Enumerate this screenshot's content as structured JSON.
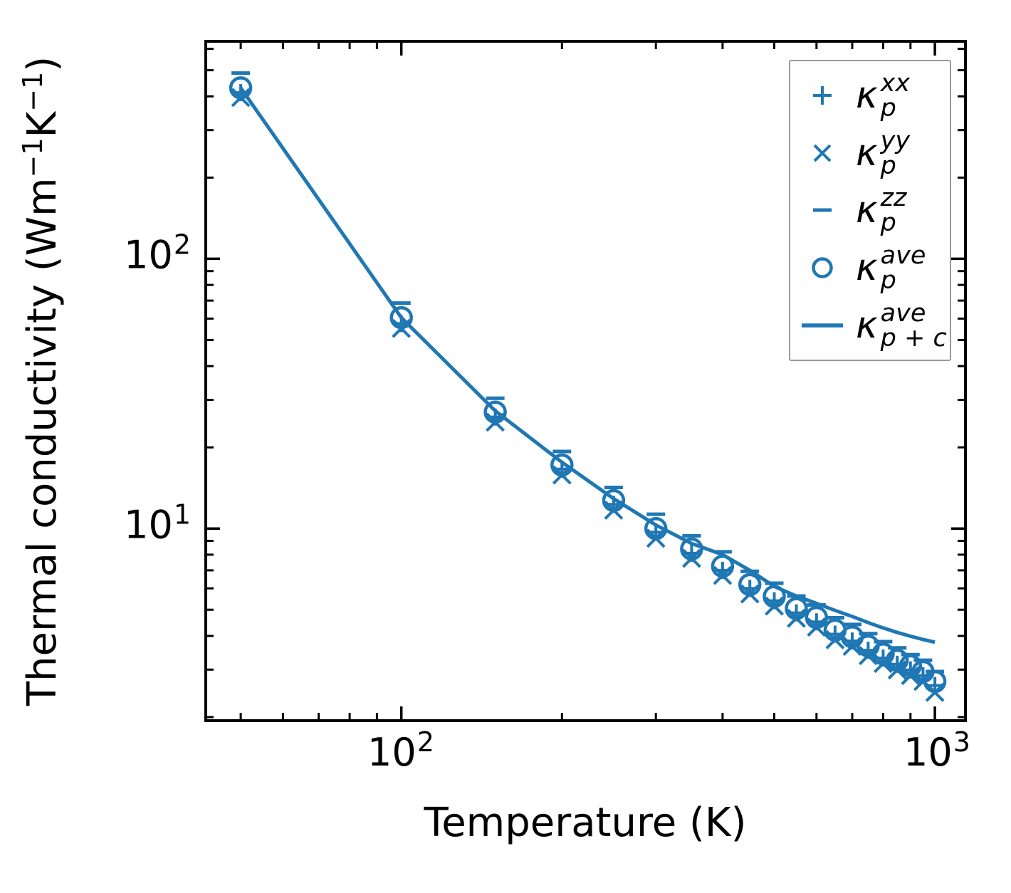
{
  "figure": {
    "x_axis": {
      "label": "Temperature (K)",
      "tick_labels": [
        {
          "base": "10",
          "exp": "2"
        },
        {
          "base": "10",
          "exp": "3"
        }
      ]
    },
    "y_axis": {
      "label_parts": {
        "p1": "Thermal conductivity (Wm",
        "exp1": "−1",
        "p2": "K",
        "exp2": "−1",
        "p3": ")"
      },
      "tick_labels": [
        {
          "base": "10",
          "exp": "2"
        },
        {
          "base": "10",
          "exp": "1"
        }
      ]
    },
    "legend": {
      "items": [
        {
          "marker": "plus-marker-icon",
          "symbol": "κ",
          "sup": "xx",
          "sub": "p"
        },
        {
          "marker": "cross-marker-icon",
          "symbol": "κ",
          "sup": "yy",
          "sub": "p"
        },
        {
          "marker": "dash-marker-icon",
          "symbol": "κ",
          "sup": "zz",
          "sub": "p"
        },
        {
          "marker": "circle-marker-icon",
          "symbol": "κ",
          "sup": "ave",
          "sub": "p"
        },
        {
          "marker": "line-sample-icon",
          "symbol": "κ",
          "sup": "ave",
          "sub": "p + c"
        }
      ]
    },
    "colors": {
      "series": "#1f77b4",
      "axis": "#000000",
      "legend_border": "#9a9a9a",
      "background": "#ffffff"
    }
  },
  "chart_data": {
    "type": "scatter",
    "xscale": "log",
    "yscale": "log",
    "grid": false,
    "legend_position": "upper right",
    "xlabel": "Temperature (K)",
    "ylabel": "Thermal conductivity (Wm⁻¹K⁻¹)",
    "xlim": [
      43,
      1141
    ],
    "ylim": [
      1.94,
      640
    ],
    "x": [
      50,
      100,
      150,
      200,
      250,
      300,
      350,
      400,
      450,
      500,
      550,
      600,
      650,
      700,
      750,
      800,
      850,
      900,
      950,
      1000
    ],
    "series": [
      {
        "name": "κ_p^xx",
        "marker": "plus",
        "values": [
          413,
          57.5,
          25.9,
          16.6,
          12.3,
          9.7,
          8.1,
          7.0,
          6.0,
          5.4,
          4.87,
          4.51,
          4.06,
          3.83,
          3.54,
          3.31,
          3.14,
          2.99,
          2.85,
          2.62
        ]
      },
      {
        "name": "κ_p^yy",
        "marker": "cross",
        "values": [
          396,
          55.2,
          24.8,
          15.8,
          11.7,
          9.2,
          7.75,
          6.7,
          5.72,
          5.16,
          4.65,
          4.31,
          3.87,
          3.66,
          3.38,
          3.16,
          2.99,
          2.85,
          2.71,
          2.47
        ]
      },
      {
        "name": "κ_p^zz",
        "marker": "dash",
        "values": [
          488,
          68.5,
          30.4,
          19.3,
          14.2,
          11.3,
          9.4,
          8.2,
          6.94,
          6.27,
          5.62,
          5.21,
          4.67,
          4.41,
          4.08,
          3.81,
          3.61,
          3.41,
          3.25,
          2.95
        ]
      },
      {
        "name": "κ_p^ave",
        "marker": "circle",
        "values": [
          430,
          60.5,
          27.0,
          17.2,
          12.7,
          10.0,
          8.4,
          7.25,
          6.2,
          5.6,
          5.05,
          4.68,
          4.2,
          3.97,
          3.67,
          3.43,
          3.25,
          3.1,
          2.95,
          2.71
        ]
      },
      {
        "name": "κ_p+c^ave",
        "marker": "line",
        "values": [
          430,
          60.5,
          27.3,
          17.6,
          12.9,
          10.3,
          8.8,
          8.0,
          7.0,
          6.1,
          5.62,
          5.28,
          4.97,
          4.72,
          4.48,
          4.28,
          4.12,
          3.99,
          3.88,
          3.79
        ]
      }
    ]
  }
}
